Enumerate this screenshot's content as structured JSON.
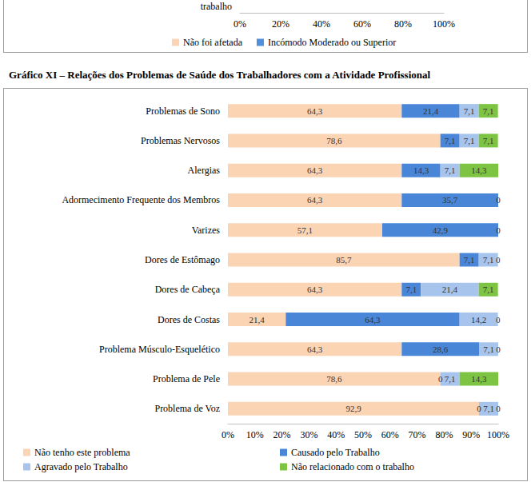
{
  "chart_data": [
    {
      "type": "bar",
      "orientation": "horizontal",
      "stacked": true,
      "categories": [
        "trabalho"
      ],
      "series": [
        {
          "name": "Não foi afetada",
          "color": "#fbd4b4",
          "values": [
            null
          ]
        },
        {
          "name": "Incómodo Moderado ou Superior",
          "color": "#4f8fdc",
          "values": [
            null
          ]
        }
      ],
      "xlim": [
        0,
        100
      ],
      "xticks": [
        {
          "value": 0,
          "label": "0%"
        },
        {
          "value": 20,
          "label": "20%"
        },
        {
          "value": 40,
          "label": "40%"
        },
        {
          "value": 60,
          "label": "60%"
        },
        {
          "value": 80,
          "label": "80%"
        },
        {
          "value": 100,
          "label": "100%"
        }
      ],
      "legend": "bottom"
    },
    {
      "type": "bar",
      "title": "Gráfico XI – Relações dos Problemas de Saúde dos Trabalhadores com a Atividade Profissional",
      "orientation": "horizontal",
      "stacked": true,
      "data_labels": true,
      "categories": [
        "Problemas de Sono",
        "Problemas Nervosos",
        "Alergias",
        "Adormecimento Frequente dos Membros",
        "Varizes",
        "Dores de Estômago",
        "Dores de Cabeça",
        "Dores de Costas",
        "Problema Músculo-Esquelético",
        "Problema de Pele",
        "Problema de Voz"
      ],
      "series": [
        {
          "name": "Não tenho este problema",
          "color": "#fbd4b4",
          "values": [
            64.3,
            78.6,
            64.3,
            64.3,
            57.1,
            85.7,
            64.3,
            21.4,
            64.3,
            78.6,
            92.9
          ],
          "value_labels": [
            "64,3",
            "78,6",
            "64,3",
            "64,3",
            "57,1",
            "85,7",
            "64,3",
            "21,4",
            "64,3",
            "78,6",
            "92,9"
          ]
        },
        {
          "name": "Causado pelo Trabalho",
          "color": "#4a86d8",
          "values": [
            21.4,
            7.1,
            14.3,
            35.7,
            42.9,
            7.1,
            7.1,
            64.3,
            28.6,
            0,
            0
          ],
          "value_labels": [
            "21,4",
            "7,1",
            "14,3",
            "35,7",
            "42,9",
            "7,1",
            "7,1",
            "64,3",
            "28,6",
            "0",
            "0"
          ]
        },
        {
          "name": "Agravado pelo Trabalho",
          "color": "#a7c4ec",
          "values": [
            7.1,
            7.1,
            7.1,
            0,
            0,
            7.1,
            21.4,
            14.2,
            7.1,
            7.1,
            7.1
          ],
          "value_labels": [
            "7,1",
            "7,1",
            "7,1",
            null,
            null,
            "7,1",
            "21,4",
            "14,2",
            "7,1",
            "7,1",
            "7,1"
          ]
        },
        {
          "name": "Não relacionado com o trabalho",
          "color": "#7cc442",
          "values": [
            7.1,
            7.1,
            14.3,
            0,
            0,
            0,
            7.1,
            0,
            0,
            14.3,
            0
          ],
          "value_labels": [
            "7,1",
            "7,1",
            "14,3",
            "0",
            "0",
            "0",
            "7,1",
            "0",
            "0",
            "14,3",
            "0"
          ]
        }
      ],
      "xlim": [
        0,
        100
      ],
      "xticks": [
        {
          "value": 0,
          "label": "0%"
        },
        {
          "value": 10,
          "label": "10%"
        },
        {
          "value": 20,
          "label": "20%"
        },
        {
          "value": 30,
          "label": "30%"
        },
        {
          "value": 40,
          "label": "40%"
        },
        {
          "value": 50,
          "label": "50%"
        },
        {
          "value": 60,
          "label": "60%"
        },
        {
          "value": 70,
          "label": "70%"
        },
        {
          "value": 80,
          "label": "80%"
        },
        {
          "value": 90,
          "label": "90%"
        },
        {
          "value": 100,
          "label": "100%"
        }
      ],
      "legend": "bottom"
    }
  ]
}
